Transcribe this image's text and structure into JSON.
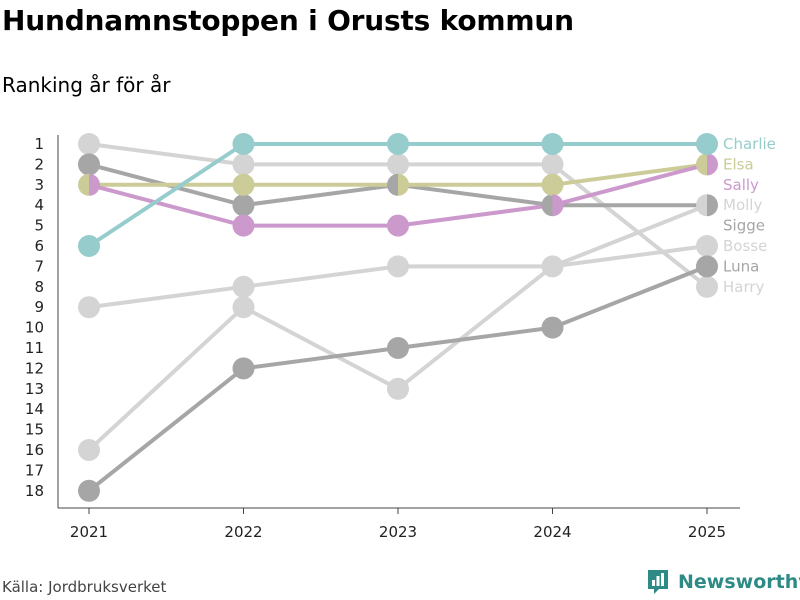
{
  "title": "Hundnamnstoppen i Orusts kommun",
  "subtitle": "Ranking år för år",
  "source": "Källa: Jordbruksverket",
  "brand": "Newsworthy",
  "colors": {
    "teal": "#96cccc",
    "purple": "#cc99cc",
    "olive": "#cccc99",
    "dark_gray": "#a6a6a6",
    "light_gray": "#d4d4d4",
    "brand": "#2e8a85"
  },
  "chart_data": {
    "type": "line",
    "subtype": "bump",
    "x": [
      "2021",
      "2022",
      "2023",
      "2024",
      "2025"
    ],
    "y_ticks": [
      1,
      2,
      3,
      4,
      5,
      6,
      7,
      8,
      9,
      10,
      11,
      12,
      13,
      14,
      15,
      16,
      17,
      18
    ],
    "ylim": [
      1,
      18
    ],
    "y_inverted": true,
    "grid": false,
    "legend": "end-labels",
    "series": [
      {
        "name": "Harry",
        "color": "#d4d4d4",
        "values": [
          1,
          2,
          2,
          2,
          8
        ]
      },
      {
        "name": "Bosse",
        "color": "#d4d4d4",
        "values": [
          9,
          8,
          7,
          7,
          6
        ]
      },
      {
        "name": "Molly",
        "color": "#d4d4d4",
        "values": [
          16,
          9,
          13,
          7,
          4
        ]
      },
      {
        "name": "Sigge",
        "color": "#a6a6a6",
        "values": [
          2,
          4,
          3,
          4,
          4
        ]
      },
      {
        "name": "Luna",
        "color": "#a6a6a6",
        "values": [
          18,
          12,
          11,
          10,
          7
        ]
      },
      {
        "name": "Elsa",
        "color": "#cccc99",
        "values": [
          3,
          3,
          3,
          3,
          2
        ]
      },
      {
        "name": "Sally",
        "color": "#cc99cc",
        "values": [
          3,
          5,
          5,
          4,
          2
        ]
      },
      {
        "name": "Charlie",
        "color": "#96cccc",
        "values": [
          6,
          1,
          1,
          1,
          1
        ]
      }
    ]
  }
}
